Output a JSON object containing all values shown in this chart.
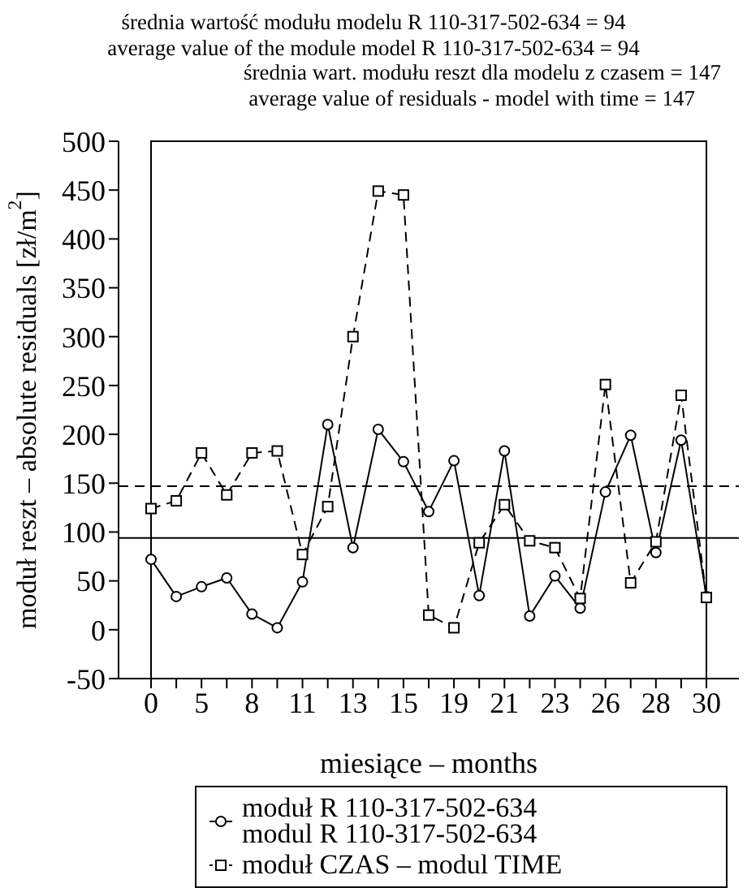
{
  "chart_data": {
    "type": "line",
    "annotations": [
      "średnia wartość modułu modelu R 110-317-502-634 = 94",
      "average value of the module model R 110-317-502-634 = 94",
      "średnia wart. modułu reszt dla modelu z czasem = 147",
      "average value of residuals - model with time = 147"
    ],
    "xlabel": "miesiące – months",
    "ylabel": "moduł reszt – absolute residuals [zł/m$^{2}$]",
    "categories": [
      "0",
      null,
      "5",
      null,
      "8",
      null,
      "11",
      null,
      "13",
      null,
      "15",
      null,
      "19",
      null,
      "21",
      null,
      "23",
      null,
      "26",
      null,
      "28",
      null,
      "30"
    ],
    "series": [
      {
        "name": "moduł R 110-317-502-634\nmodul R 110-317-502-634",
        "color": "#000000",
        "marker": "circle",
        "line_style": "solid",
        "values": [
          72,
          34,
          44,
          53,
          16,
          2,
          49,
          210,
          84,
          205,
          172,
          121,
          173,
          35,
          183,
          14,
          55,
          22,
          141,
          199,
          79,
          194,
          34
        ]
      },
      {
        "name": "moduł CZAS – modul TIME",
        "color": "#000000",
        "marker": "square",
        "line_style": "dashed",
        "values": [
          124,
          132,
          181,
          138,
          181,
          183,
          77,
          126,
          300,
          449,
          445,
          15,
          2,
          89,
          128,
          91,
          84,
          32,
          251,
          48,
          90,
          240,
          33
        ]
      }
    ],
    "ylim": [
      -50,
      500
    ],
    "yticks": [
      -50,
      0,
      50,
      100,
      150,
      200,
      250,
      300,
      350,
      400,
      450,
      500
    ],
    "ref_lines": [
      {
        "axis": "y",
        "value": 94,
        "line_style": "solid",
        "color": "#000000"
      },
      {
        "axis": "y",
        "value": 147,
        "line_style": "dashed",
        "color": "#000000"
      }
    ],
    "grid": false,
    "legend": "bottom"
  }
}
